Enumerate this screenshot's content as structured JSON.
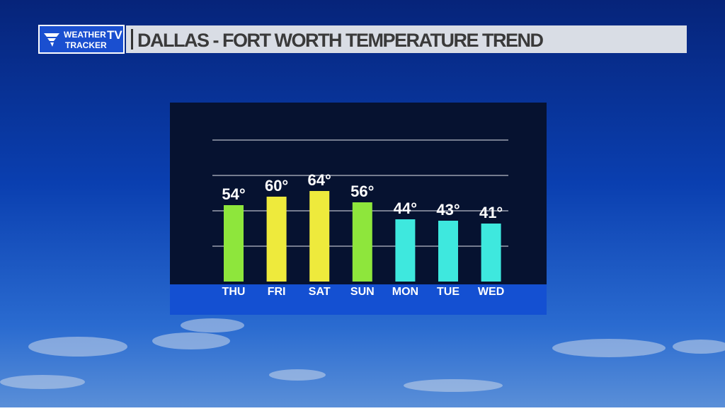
{
  "logo": {
    "line1": "WEATHER",
    "line2": "TRACKER",
    "badge": "TV"
  },
  "chart_data": {
    "type": "bar",
    "title": "DALLAS - FORT WORTH TEMPERATURE TREND",
    "categories": [
      "THU",
      "FRI",
      "SAT",
      "SUN",
      "MON",
      "TUE",
      "WED"
    ],
    "values": [
      54,
      60,
      64,
      56,
      44,
      43,
      41
    ],
    "value_labels": [
      "54°",
      "60°",
      "64°",
      "56°",
      "44°",
      "43°",
      "41°"
    ],
    "colors": [
      "#8ee63c",
      "#eeea3c",
      "#eeea3c",
      "#8ee63c",
      "#3ee8de",
      "#3ee8de",
      "#3ee8de"
    ],
    "ylim": [
      0,
      100
    ],
    "yticks": [
      25,
      50,
      75,
      100
    ],
    "grid": true
  }
}
